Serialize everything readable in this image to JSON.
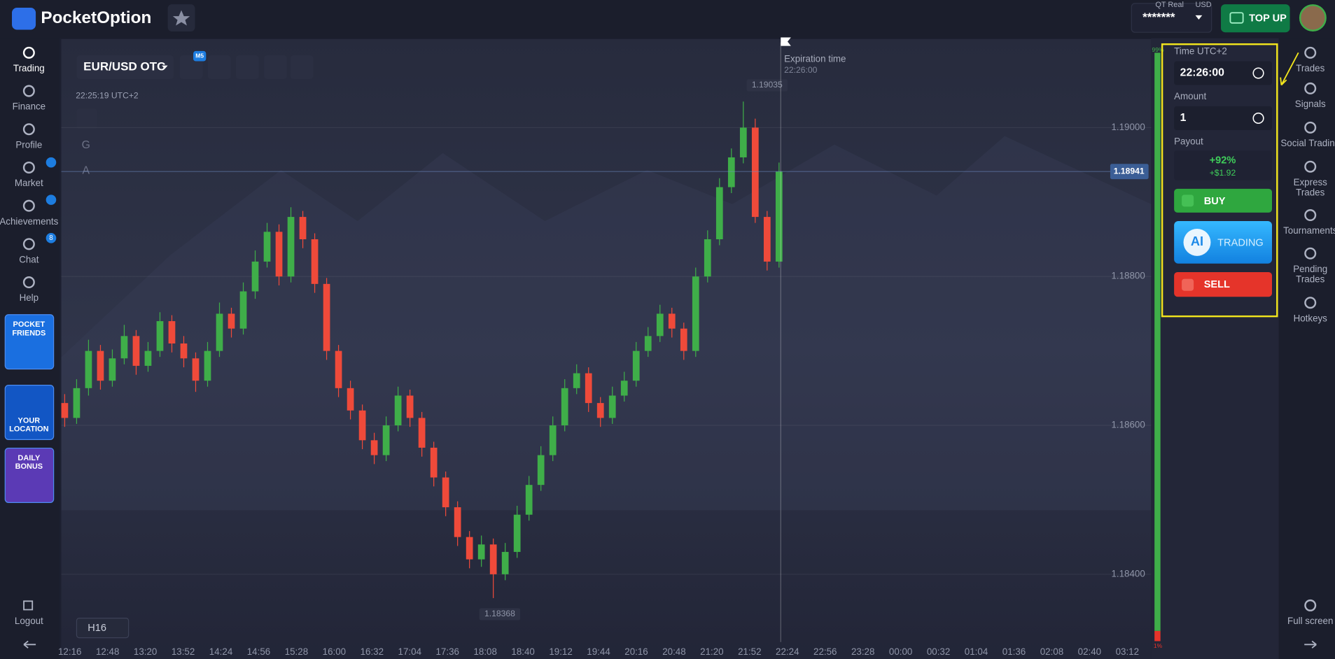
{
  "header": {
    "logo": "PocketOption",
    "account_type": "QT Real",
    "currency": "USD",
    "balance": "*******",
    "top_up": "TOP UP"
  },
  "sidebar": {
    "items": [
      {
        "label": "Trading"
      },
      {
        "label": "Finance"
      },
      {
        "label": "Profile"
      },
      {
        "label": "Market"
      },
      {
        "label": "Achievements"
      },
      {
        "label": "Chat",
        "badge": "8"
      },
      {
        "label": "Help"
      }
    ],
    "promos": [
      {
        "lines": [
          "POCKET",
          "FRIENDS"
        ]
      },
      {
        "lines": [
          "YOUR",
          "LOCATION"
        ]
      },
      {
        "lines": [
          "DAILY",
          "BONUS"
        ]
      }
    ],
    "logout": "Logout"
  },
  "toolbar": {
    "pair": "EUR/USD OTC",
    "badge": "M5",
    "clock": "22:25:19 UTC+2",
    "tools": [
      "G",
      "A"
    ],
    "timeframe": "H16"
  },
  "expiration": {
    "label": "Expiration time",
    "time": "22:26:00"
  },
  "chart_data": {
    "type": "candlestick",
    "up_color": "#3fae49",
    "down_color": "#ef4a3a",
    "candles": [
      [
        1.1863,
        1.18642,
        1.18598,
        1.1861
      ],
      [
        1.1861,
        1.18662,
        1.18602,
        1.1865
      ],
      [
        1.1865,
        1.18715,
        1.1864,
        1.187
      ],
      [
        1.187,
        1.18708,
        1.18648,
        1.1866
      ],
      [
        1.1866,
        1.18702,
        1.18652,
        1.1869
      ],
      [
        1.1869,
        1.18735,
        1.18682,
        1.1872
      ],
      [
        1.1872,
        1.18728,
        1.18668,
        1.1868
      ],
      [
        1.1868,
        1.18712,
        1.18672,
        1.187
      ],
      [
        1.187,
        1.18752,
        1.18692,
        1.1874
      ],
      [
        1.1874,
        1.18748,
        1.18698,
        1.1871
      ],
      [
        1.1871,
        1.1872,
        1.18678,
        1.1869
      ],
      [
        1.1869,
        1.18698,
        1.18645,
        1.1866
      ],
      [
        1.1866,
        1.18712,
        1.18652,
        1.187
      ],
      [
        1.187,
        1.18765,
        1.18692,
        1.1875
      ],
      [
        1.1875,
        1.18758,
        1.18718,
        1.1873
      ],
      [
        1.1873,
        1.18792,
        1.18722,
        1.1878
      ],
      [
        1.1878,
        1.18835,
        1.1877,
        1.1882
      ],
      [
        1.1882,
        1.18872,
        1.18812,
        1.1886
      ],
      [
        1.1886,
        1.1887,
        1.18788,
        1.188
      ],
      [
        1.188,
        1.18893,
        1.18792,
        1.1888
      ],
      [
        1.1888,
        1.18888,
        1.18838,
        1.1885
      ],
      [
        1.1885,
        1.18858,
        1.18778,
        1.1879
      ],
      [
        1.1879,
        1.18798,
        1.18688,
        1.187
      ],
      [
        1.187,
        1.18708,
        1.18638,
        1.1865
      ],
      [
        1.1865,
        1.1866,
        1.18608,
        1.1862
      ],
      [
        1.1862,
        1.18628,
        1.18568,
        1.1858
      ],
      [
        1.1858,
        1.1859,
        1.18548,
        1.1856
      ],
      [
        1.1856,
        1.18612,
        1.18552,
        1.186
      ],
      [
        1.186,
        1.18652,
        1.18592,
        1.1864
      ],
      [
        1.1864,
        1.18648,
        1.18598,
        1.1861
      ],
      [
        1.1861,
        1.18618,
        1.18558,
        1.1857
      ],
      [
        1.1857,
        1.18578,
        1.18518,
        1.1853
      ],
      [
        1.1853,
        1.18538,
        1.18478,
        1.1849
      ],
      [
        1.1849,
        1.18498,
        1.18438,
        1.1845
      ],
      [
        1.1845,
        1.18458,
        1.18408,
        1.1842
      ],
      [
        1.1842,
        1.18452,
        1.1841,
        1.1844
      ],
      [
        1.1844,
        1.18448,
        1.18368,
        1.184
      ],
      [
        1.184,
        1.18442,
        1.18392,
        1.1843
      ],
      [
        1.1843,
        1.18492,
        1.18422,
        1.1848
      ],
      [
        1.1848,
        1.18532,
        1.18472,
        1.1852
      ],
      [
        1.1852,
        1.18572,
        1.18512,
        1.1856
      ],
      [
        1.1856,
        1.18612,
        1.18552,
        1.186
      ],
      [
        1.186,
        1.18662,
        1.18592,
        1.1865
      ],
      [
        1.1865,
        1.18682,
        1.18642,
        1.1867
      ],
      [
        1.1867,
        1.18678,
        1.18618,
        1.1863
      ],
      [
        1.1863,
        1.18638,
        1.18598,
        1.1861
      ],
      [
        1.1861,
        1.18652,
        1.18602,
        1.1864
      ],
      [
        1.1864,
        1.18672,
        1.18632,
        1.1866
      ],
      [
        1.1866,
        1.18712,
        1.18652,
        1.187
      ],
      [
        1.187,
        1.18732,
        1.18692,
        1.1872
      ],
      [
        1.1872,
        1.18762,
        1.18712,
        1.1875
      ],
      [
        1.1875,
        1.18758,
        1.18718,
        1.1873
      ],
      [
        1.1873,
        1.18738,
        1.18688,
        1.187
      ],
      [
        1.187,
        1.18812,
        1.18692,
        1.188
      ],
      [
        1.188,
        1.18862,
        1.18792,
        1.1885
      ],
      [
        1.1885,
        1.18932,
        1.18842,
        1.1892
      ],
      [
        1.1892,
        1.18972,
        1.18912,
        1.1896
      ],
      [
        1.1896,
        1.19035,
        1.18952,
        1.19
      ],
      [
        1.19,
        1.19012,
        1.18872,
        1.1888
      ],
      [
        1.1888,
        1.18888,
        1.18808,
        1.1882
      ],
      [
        1.1882,
        1.18953,
        1.18812,
        1.18941
      ]
    ],
    "ylim": [
      1.18309,
      1.1912
    ],
    "yticks": [
      {
        "value": 1.184,
        "label": "1.18400"
      },
      {
        "value": 1.186,
        "label": "1.18600"
      },
      {
        "value": 1.188,
        "label": "1.18800"
      },
      {
        "value": 1.19,
        "label": "1.19000"
      }
    ],
    "high_label": 1.19035,
    "low_label": 1.18368,
    "current_price": 1.18941,
    "x_labels": [
      "12:16",
      "12:48",
      "13:20",
      "13:52",
      "14:24",
      "14:56",
      "15:28",
      "16:00",
      "16:32",
      "17:04",
      "17:36",
      "18:08",
      "18:40",
      "19:12",
      "19:44",
      "20:16",
      "20:48",
      "21:20",
      "21:52",
      "22:24",
      "22:56",
      "23:28",
      "00:00",
      "00:32",
      "01:04",
      "01:36",
      "02:08",
      "02:40",
      "03:12"
    ]
  },
  "payout_bar": {
    "top": "99%",
    "bottom": "1%"
  },
  "trade_panel": {
    "time_label": "Time UTC+2",
    "time": "22:26:00",
    "amount_label": "Amount",
    "amount": "1",
    "payout_label": "Payout",
    "payout_pct": "+92%",
    "payout_amount": "+$1.92",
    "buy": "BUY",
    "ai": "AI",
    "ai_trading": "TRADING",
    "sell": "SELL"
  },
  "right_nav": [
    {
      "lines": [
        "Trades"
      ]
    },
    {
      "lines": [
        "Signals"
      ]
    },
    {
      "lines": [
        "Social Trading"
      ]
    },
    {
      "lines": [
        "Express",
        "Trades"
      ]
    },
    {
      "lines": [
        "Tournaments"
      ]
    },
    {
      "lines": [
        "Pending",
        "Trades"
      ]
    },
    {
      "lines": [
        "Hotkeys"
      ]
    },
    {
      "lines": [
        "Full screen"
      ]
    }
  ]
}
